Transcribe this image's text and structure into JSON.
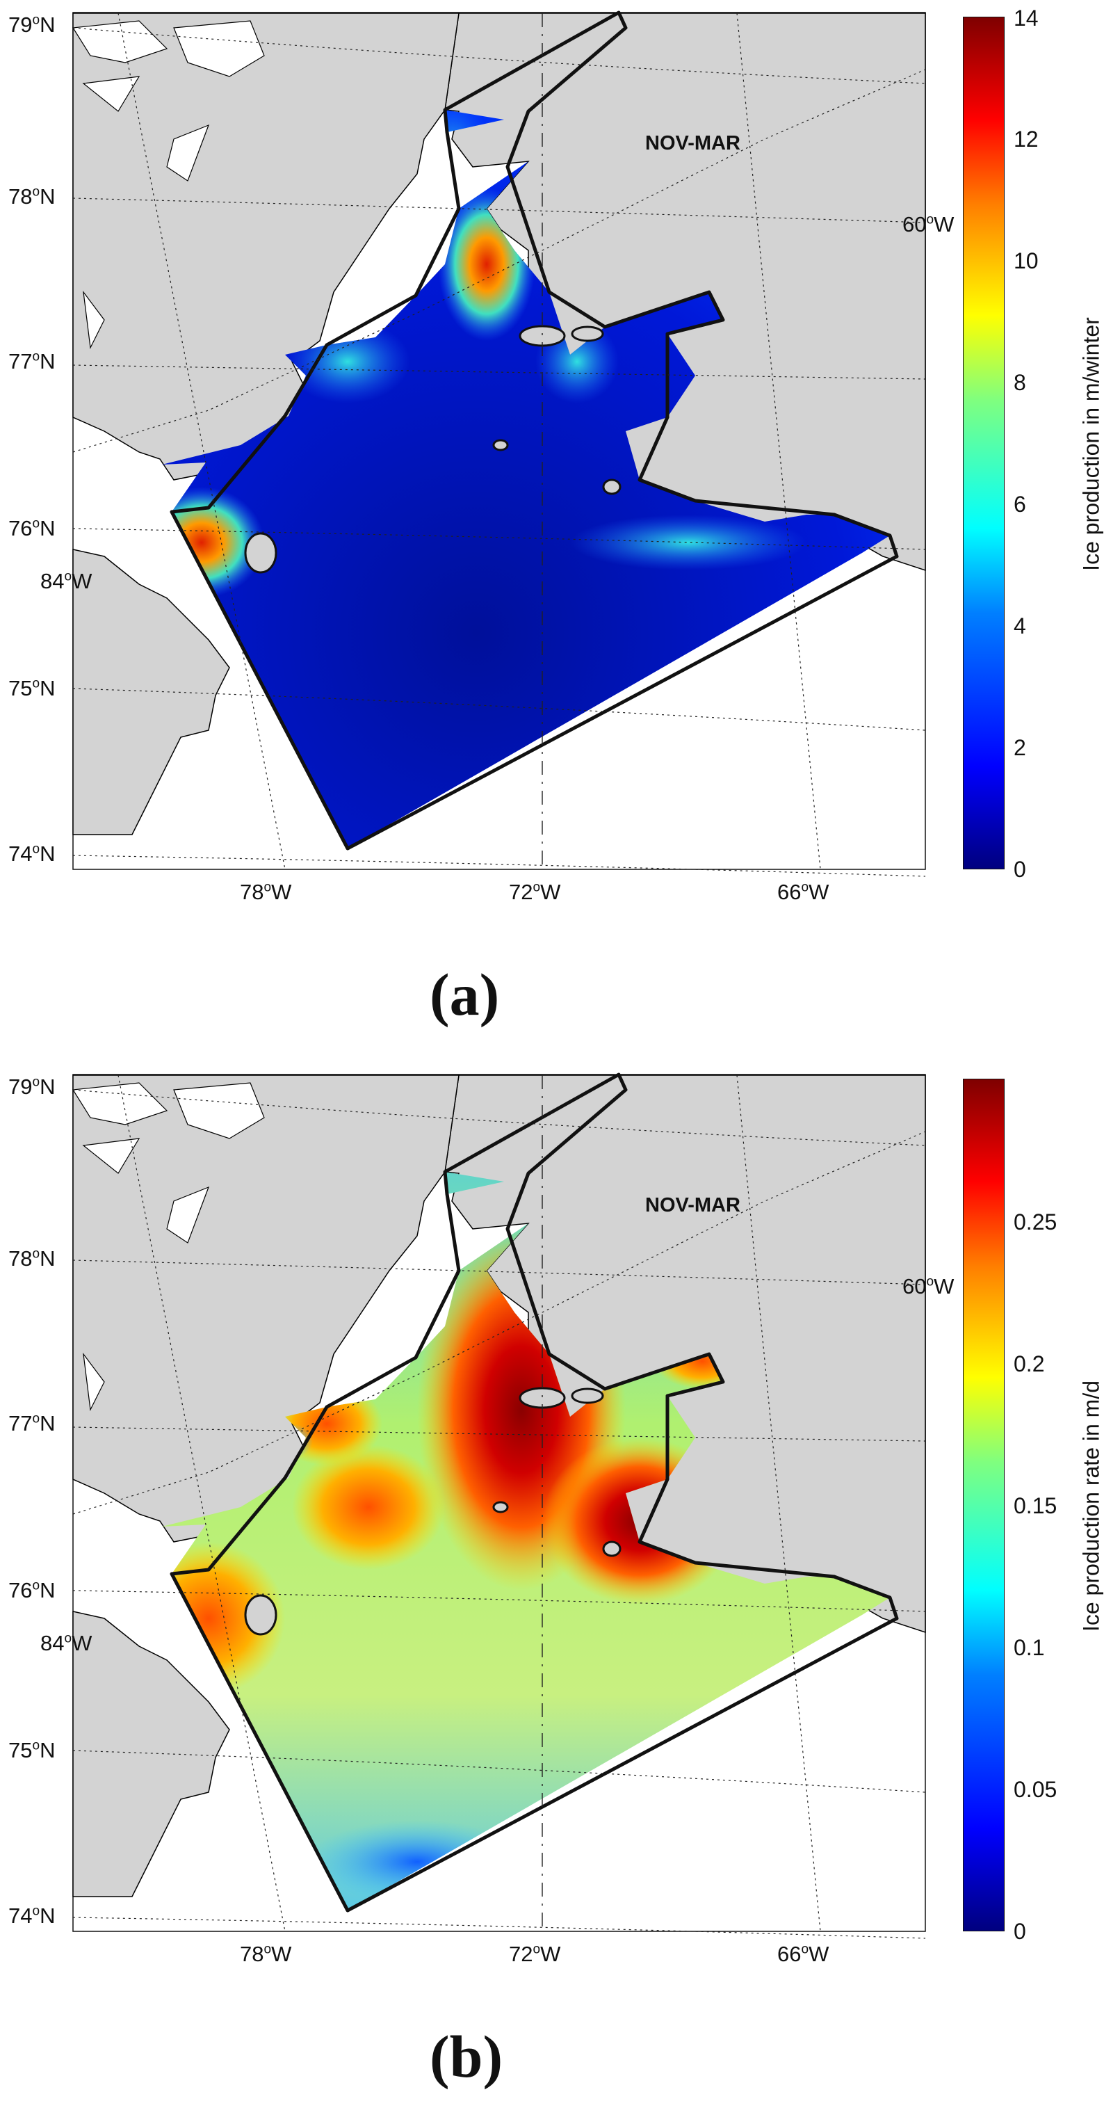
{
  "panels": [
    {
      "id": "a",
      "panel_label": "(a)",
      "season": "NOV-MAR",
      "colorbar": {
        "label": "Ice production in m/winter",
        "ticks": [
          "0",
          "2",
          "4",
          "6",
          "8",
          "10",
          "12",
          "14"
        ],
        "min": 0,
        "max": 14,
        "colormap": "jet"
      },
      "field": "ice production, low in centre, highest near eastern coast"
    },
    {
      "id": "b",
      "panel_label": "(b)",
      "season": "NOV-MAR",
      "colorbar": {
        "label": "Ice production rate in m/d",
        "ticks": [
          "0",
          "0.05",
          "0.1",
          "0.15",
          "0.2",
          "0.25"
        ],
        "min": 0,
        "max": 0.3,
        "colormap": "jet"
      },
      "field": "ice production rate, high along eastern coast, moderate elsewhere"
    }
  ],
  "graticule": {
    "lat_labels": [
      "79",
      "78",
      "77",
      "76",
      "75",
      "74"
    ],
    "lon_labels_bottom": [
      "78",
      "72",
      "66"
    ],
    "lon_label_left": "84",
    "lon_label_right": "60",
    "lat_suffix": "N",
    "lon_suffix": "W",
    "degree_mark": "o"
  },
  "colors": {
    "land": "#d3d3d3",
    "background": "#ffffff",
    "coastline": "#000000",
    "jet_stops": [
      "#00007f",
      "#0000ff",
      "#007fff",
      "#00ffff",
      "#7fff7f",
      "#ffff00",
      "#ff7f00",
      "#ff0000",
      "#7f0000"
    ]
  }
}
